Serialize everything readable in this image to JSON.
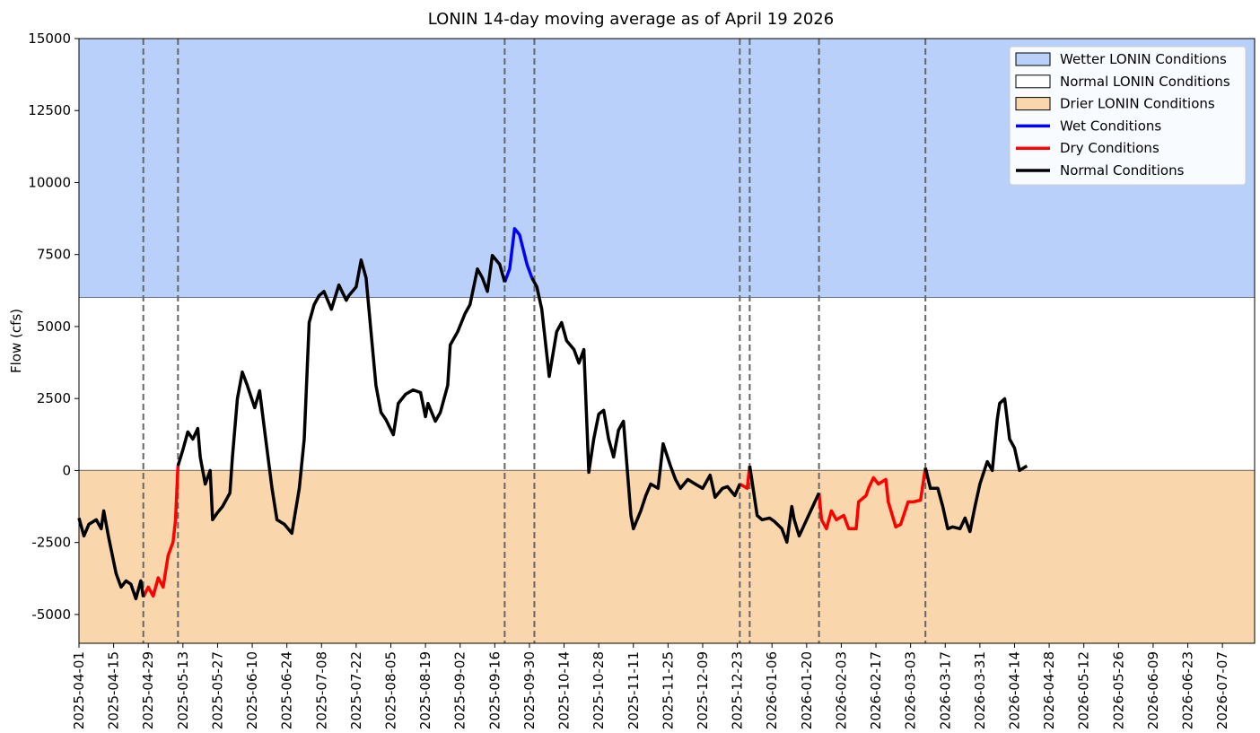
{
  "chart_data": {
    "type": "line",
    "title": "LONIN 14-day moving average as of April 19 2026",
    "y_label": "Flow (cfs)",
    "xlim": [
      "2025-04-01",
      "2026-07-20"
    ],
    "xticks": [
      "2025-04-01",
      "2025-04-15",
      "2025-04-29",
      "2025-05-13",
      "2025-05-27",
      "2025-06-10",
      "2025-06-24",
      "2025-07-08",
      "2025-07-22",
      "2025-08-05",
      "2025-08-19",
      "2025-09-02",
      "2025-09-16",
      "2025-09-30",
      "2025-10-14",
      "2025-10-28",
      "2025-11-11",
      "2025-11-25",
      "2025-12-09",
      "2025-12-23",
      "2026-01-06",
      "2026-01-20",
      "2026-02-03",
      "2026-02-17",
      "2026-03-03",
      "2026-03-17",
      "2026-03-31",
      "2026-04-14",
      "2026-04-28",
      "2026-05-12",
      "2026-05-26",
      "2026-06-09",
      "2026-06-23",
      "2026-07-07"
    ],
    "ylim": [
      -6000,
      15000
    ],
    "yticks": [
      -5000,
      -2500,
      0,
      2500,
      5000,
      7500,
      10000,
      12500,
      15000
    ],
    "legend": "upper right",
    "bands": [
      {
        "name": "Wetter LONIN Conditions",
        "color": "#b9d1fa",
        "lower": 6000
      },
      {
        "name": "Normal LONIN Conditions",
        "color": "#ffffff",
        "lower": 0,
        "upper": 6000
      },
      {
        "name": "Drier LONIN Conditions",
        "color": "#f9d6ab",
        "upper": 0
      }
    ],
    "vlines": [
      "2025-04-27",
      "2025-05-11",
      "2025-09-20",
      "2025-10-02",
      "2025-12-24",
      "2025-12-28",
      "2026-01-25",
      "2026-03-09"
    ],
    "series": [
      {
        "name": "Wet Conditions",
        "color": "#0000ff",
        "x": [
          "2025-09-20",
          "2025-09-22",
          "2025-09-24",
          "2025-09-26",
          "2025-09-29",
          "2025-10-01"
        ],
        "values": [
          6540,
          7000,
          8400,
          8190,
          7160,
          6690
        ]
      },
      {
        "name": "Dry Conditions",
        "color": "#ff0000",
        "x": [
          "2025-04-27",
          "2025-04-29",
          "2025-05-01",
          "2025-05-03",
          "2025-05-05",
          "2025-05-07",
          "2025-05-09",
          "2025-05-10",
          "2025-05-11",
          null,
          "2025-12-24",
          "2025-12-27",
          "2025-12-28",
          null,
          "2026-01-25",
          "2026-01-26",
          "2026-01-28",
          "2026-01-30",
          "2026-02-01",
          "2026-02-04",
          "2026-02-06",
          "2026-02-09",
          "2026-02-10",
          "2026-02-13",
          "2026-02-14",
          "2026-02-16",
          "2026-02-18",
          "2026-02-21",
          "2026-02-22",
          "2026-02-25",
          "2026-02-27",
          "2026-03-02",
          "2026-03-04",
          "2026-03-07",
          "2026-03-09"
        ],
        "values": [
          -4390,
          -4050,
          -4360,
          -3730,
          -4050,
          -2960,
          -2490,
          -1710,
          160,
          null,
          -470,
          -620,
          160,
          null,
          -780,
          -1710,
          -2020,
          -1400,
          -1710,
          -1560,
          -2020,
          -2020,
          -1090,
          -870,
          -620,
          -250,
          -470,
          -310,
          -1090,
          -1960,
          -1870,
          -1090,
          -1090,
          -1030,
          90
        ]
      },
      {
        "name": "Normal Conditions",
        "color": "#000000",
        "x": [
          "2025-04-01",
          "2025-04-03",
          "2025-04-05",
          "2025-04-08",
          "2025-04-10",
          "2025-04-11",
          "2025-04-13",
          "2025-04-16",
          "2025-04-18",
          "2025-04-20",
          "2025-04-22",
          "2025-04-24",
          "2025-04-26",
          "2025-04-27",
          null,
          "2025-05-11",
          "2025-05-13",
          "2025-05-15",
          "2025-05-17",
          "2025-05-19",
          "2025-05-20",
          "2025-05-22",
          "2025-05-24",
          "2025-05-25",
          "2025-05-27",
          "2025-05-29",
          "2025-06-01",
          "2025-06-02",
          "2025-06-04",
          "2025-06-06",
          "2025-06-08",
          "2025-06-11",
          "2025-06-13",
          "2025-06-15",
          "2025-06-18",
          "2025-06-20",
          "2025-06-23",
          "2025-06-26",
          "2025-06-29",
          "2025-07-01",
          "2025-07-03",
          "2025-07-05",
          "2025-07-07",
          "2025-07-09",
          "2025-07-12",
          "2025-07-15",
          "2025-07-18",
          "2025-07-19",
          "2025-07-22",
          "2025-07-24",
          "2025-07-26",
          "2025-07-28",
          "2025-07-30",
          "2025-08-01",
          "2025-08-03",
          "2025-08-06",
          "2025-08-08",
          "2025-08-11",
          "2025-08-14",
          "2025-08-17",
          "2025-08-19",
          "2025-08-20",
          "2025-08-23",
          "2025-08-25",
          "2025-08-28",
          "2025-08-29",
          "2025-09-01",
          "2025-09-04",
          "2025-09-06",
          "2025-09-09",
          "2025-09-11",
          "2025-09-13",
          "2025-09-15",
          "2025-09-18",
          "2025-09-20",
          null,
          "2025-10-01",
          "2025-10-03",
          "2025-10-05",
          "2025-10-08",
          "2025-10-11",
          "2025-10-13",
          "2025-10-15",
          "2025-10-18",
          "2025-10-20",
          "2025-10-22",
          "2025-10-24",
          "2025-10-26",
          "2025-10-28",
          "2025-10-30",
          "2025-11-01",
          "2025-11-03",
          "2025-11-05",
          "2025-11-07",
          "2025-11-10",
          "2025-11-11",
          "2025-11-14",
          "2025-11-16",
          "2025-11-18",
          "2025-11-21",
          "2025-11-23",
          "2025-11-26",
          "2025-11-28",
          "2025-11-30",
          "2025-12-03",
          "2025-12-06",
          "2025-12-09",
          "2025-12-12",
          "2025-12-14",
          "2025-12-17",
          "2025-12-19",
          "2025-12-22",
          "2025-12-24",
          null,
          "2025-12-28",
          "2025-12-31",
          "2026-01-02",
          "2026-01-05",
          "2026-01-07",
          "2026-01-10",
          "2026-01-12",
          "2026-01-14",
          "2026-01-15",
          "2026-01-17",
          "2026-01-20",
          "2026-01-22",
          "2026-01-25",
          null,
          "2026-03-09",
          "2026-03-11",
          "2026-03-14",
          "2026-03-16",
          "2026-03-18",
          "2026-03-20",
          "2026-03-23",
          "2026-03-25",
          "2026-03-27",
          "2026-03-29",
          "2026-03-31",
          "2026-04-03",
          "2026-04-05",
          "2026-04-07",
          "2026-04-08",
          "2026-04-10",
          "2026-04-12",
          "2026-04-14",
          "2026-04-16",
          "2026-04-19"
        ],
        "values": [
          -1650,
          -2270,
          -1870,
          -1710,
          -2020,
          -1400,
          -2330,
          -3580,
          -4050,
          -3830,
          -3950,
          -4450,
          -3830,
          -4390,
          null,
          160,
          720,
          1340,
          1090,
          1460,
          470,
          -470,
          0,
          -1710,
          -1460,
          -1250,
          -780,
          470,
          2490,
          3420,
          2960,
          2180,
          2770,
          1400,
          -620,
          -1710,
          -1870,
          -2180,
          -620,
          1090,
          5140,
          5760,
          6070,
          6220,
          5600,
          6440,
          5910,
          6070,
          6380,
          7310,
          6690,
          4820,
          2960,
          2020,
          1770,
          1240,
          2330,
          2650,
          2800,
          2710,
          1870,
          2330,
          1710,
          2020,
          2960,
          4360,
          4820,
          5450,
          5760,
          7000,
          6690,
          6220,
          7470,
          7160,
          6540,
          null,
          6690,
          6380,
          5600,
          3270,
          4820,
          5140,
          4510,
          4200,
          3730,
          4200,
          -60,
          1090,
          1960,
          2090,
          1090,
          470,
          1400,
          1710,
          -1560,
          -2020,
          -1400,
          -870,
          -470,
          -620,
          930,
          160,
          -310,
          -620,
          -310,
          -470,
          -620,
          -160,
          -930,
          -620,
          -560,
          -870,
          -470,
          null,
          160,
          -1560,
          -1710,
          -1650,
          -1770,
          -2020,
          -2490,
          -1250,
          -1710,
          -2270,
          -1710,
          -1340,
          -780,
          null,
          90,
          -620,
          -620,
          -1250,
          -2020,
          -1960,
          -2020,
          -1650,
          -2120,
          -1250,
          -470,
          310,
          0,
          1770,
          2330,
          2490,
          1090,
          780,
          0,
          160
        ]
      }
    ]
  }
}
